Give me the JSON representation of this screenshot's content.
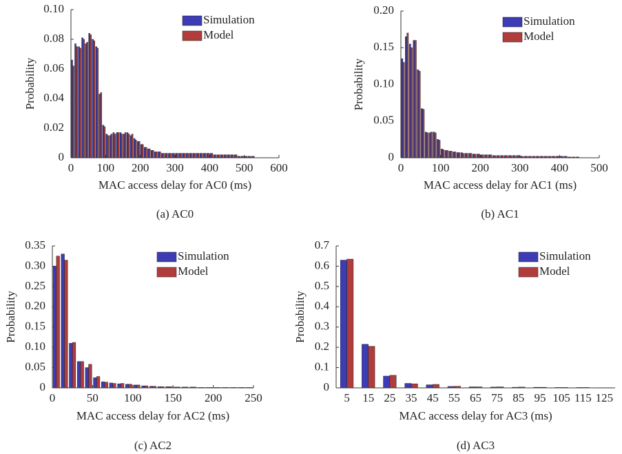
{
  "chart_data": [
    {
      "type": "bar",
      "caption": "(a) AC0",
      "xlabel": "MAC access delay for AC0 (ms)",
      "ylabel": "Probability",
      "legend": "upper right",
      "x": [
        5,
        15,
        25,
        35,
        45,
        55,
        65,
        75,
        85,
        95,
        105,
        115,
        125,
        135,
        145,
        155,
        165,
        175,
        185,
        195,
        205,
        215,
        225,
        235,
        245,
        255,
        265,
        275,
        285,
        295,
        305,
        315,
        325,
        335,
        345,
        355,
        365,
        375,
        385,
        395,
        405,
        415,
        425,
        435,
        445,
        455,
        465,
        475,
        485,
        495,
        505,
        515,
        525
      ],
      "series": [
        {
          "name": "Simulation",
          "color": "#3c3cb4",
          "values": [
            0.066,
            0.077,
            0.075,
            0.081,
            0.077,
            0.084,
            0.08,
            0.075,
            0.043,
            0.022,
            0.016,
            0.015,
            0.017,
            0.017,
            0.017,
            0.016,
            0.017,
            0.015,
            0.013,
            0.011,
            0.009,
            0.007,
            0.006,
            0.005,
            0.004,
            0.004,
            0.003,
            0.003,
            0.003,
            0.003,
            0.003,
            0.003,
            0.003,
            0.003,
            0.003,
            0.003,
            0.003,
            0.003,
            0.003,
            0.003,
            0.003,
            0.002,
            0.002,
            0.002,
            0.002,
            0.002,
            0.002,
            0.002,
            0.001,
            0.001,
            0.001,
            0.001,
            0.001
          ]
        },
        {
          "name": "Model",
          "color": "#b03c3c",
          "values": [
            0.062,
            0.075,
            0.074,
            0.08,
            0.078,
            0.083,
            0.079,
            0.074,
            0.044,
            0.021,
            0.015,
            0.016,
            0.016,
            0.017,
            0.016,
            0.017,
            0.016,
            0.016,
            0.012,
            0.011,
            0.009,
            0.007,
            0.006,
            0.005,
            0.004,
            0.004,
            0.003,
            0.003,
            0.003,
            0.003,
            0.003,
            0.003,
            0.003,
            0.003,
            0.003,
            0.003,
            0.003,
            0.003,
            0.003,
            0.003,
            0.003,
            0.002,
            0.002,
            0.002,
            0.002,
            0.002,
            0.002,
            0.002,
            0.001,
            0.001,
            0.001,
            0.001,
            0.001
          ]
        }
      ],
      "xlim": [
        0,
        600
      ],
      "xticks": [
        0,
        100,
        200,
        300,
        400,
        500,
        600
      ],
      "ylim": [
        0,
        0.1
      ],
      "yticks": [
        0,
        0.02,
        0.04,
        0.06,
        0.08,
        {
          "value": 0.1,
          "label": "0.10"
        }
      ]
    },
    {
      "type": "bar",
      "caption": "(b) AC1",
      "xlabel": "MAC access delay for AC1 (ms)",
      "ylabel": "Probability",
      "legend": "upper right",
      "x": [
        5,
        15,
        25,
        35,
        45,
        55,
        65,
        75,
        85,
        95,
        105,
        115,
        125,
        135,
        145,
        155,
        165,
        175,
        185,
        195,
        205,
        215,
        225,
        235,
        245,
        255,
        265,
        275,
        285,
        295,
        305,
        315,
        325,
        335,
        345,
        355,
        365,
        375,
        385,
        395,
        405,
        415,
        425,
        435,
        445
      ],
      "series": [
        {
          "name": "Simulation",
          "color": "#3c3cb4",
          "values": [
            0.135,
            0.165,
            0.155,
            0.16,
            0.12,
            0.067,
            0.035,
            0.034,
            0.035,
            0.025,
            0.012,
            0.01,
            0.009,
            0.008,
            0.007,
            0.007,
            0.006,
            0.006,
            0.005,
            0.005,
            0.004,
            0.004,
            0.004,
            0.003,
            0.003,
            0.003,
            0.003,
            0.003,
            0.003,
            0.003,
            0.002,
            0.002,
            0.002,
            0.002,
            0.002,
            0.002,
            0.002,
            0.002,
            0.002,
            0.002,
            0.002,
            0.002,
            0.001,
            0.001,
            0.001
          ]
        },
        {
          "name": "Model",
          "color": "#b03c3c",
          "values": [
            0.13,
            0.17,
            0.15,
            0.16,
            0.118,
            0.066,
            0.034,
            0.035,
            0.034,
            0.024,
            0.011,
            0.01,
            0.009,
            0.008,
            0.007,
            0.006,
            0.006,
            0.006,
            0.005,
            0.005,
            0.004,
            0.004,
            0.004,
            0.003,
            0.003,
            0.003,
            0.003,
            0.003,
            0.003,
            0.003,
            0.002,
            0.002,
            0.002,
            0.002,
            0.002,
            0.002,
            0.002,
            0.002,
            0.002,
            0.002,
            0.002,
            0.002,
            0.001,
            0.001,
            0.001
          ]
        }
      ],
      "xlim": [
        0,
        500
      ],
      "xticks": [
        0,
        100,
        200,
        300,
        400,
        500
      ],
      "ylim": [
        0,
        0.2
      ],
      "yticks": [
        0,
        0.05,
        {
          "value": 0.1,
          "label": "0.10"
        },
        0.15,
        {
          "value": 0.2,
          "label": "0.20"
        }
      ]
    },
    {
      "type": "bar",
      "caption": "(c) AC2",
      "xlabel": "MAC access delay for AC2 (ms)",
      "ylabel": "Probability",
      "legend": "upper right",
      "x": [
        5,
        15,
        25,
        35,
        45,
        55,
        65,
        75,
        85,
        95,
        105,
        115,
        125,
        135,
        145,
        155,
        165,
        175,
        185,
        195,
        205,
        215,
        225,
        235,
        245
      ],
      "series": [
        {
          "name": "Simulation",
          "color": "#3c3cb4",
          "values": [
            0.3,
            0.33,
            0.11,
            0.065,
            0.05,
            0.025,
            0.015,
            0.012,
            0.01,
            0.009,
            0.007,
            0.005,
            0.004,
            0.003,
            0.003,
            0.002,
            0.002,
            0.002,
            0.001,
            0.001,
            0.001,
            0.001,
            0.001,
            0.001,
            0.001
          ]
        },
        {
          "name": "Model",
          "color": "#b03c3c",
          "values": [
            0.325,
            0.315,
            0.112,
            0.065,
            0.058,
            0.028,
            0.014,
            0.011,
            0.011,
            0.009,
            0.007,
            0.005,
            0.004,
            0.003,
            0.003,
            0.002,
            0.002,
            0.002,
            0.001,
            0.001,
            0.001,
            0.001,
            0.001,
            0.001,
            0.001
          ]
        }
      ],
      "xlim": [
        0,
        250
      ],
      "xticks": [
        0,
        50,
        100,
        150,
        200,
        250
      ],
      "ylim": [
        0,
        0.35
      ],
      "yticks": [
        0,
        0.05,
        {
          "value": 0.1,
          "label": "0.10"
        },
        0.15,
        {
          "value": 0.2,
          "label": "0.20"
        },
        0.25,
        {
          "value": 0.3,
          "label": "0.30"
        },
        0.35
      ]
    },
    {
      "type": "bar",
      "caption": "(d) AC3",
      "xlabel": "MAC access delay for AC3 (ms)",
      "ylabel": "Probability",
      "legend": "upper right",
      "categories": [
        "5",
        "15",
        "25",
        "35",
        "45",
        "55",
        "65",
        "75",
        "85",
        "95",
        "105",
        "115",
        "125"
      ],
      "series": [
        {
          "name": "Simulation",
          "color": "#3c3cb4",
          "values": [
            0.63,
            0.215,
            0.058,
            0.022,
            0.015,
            0.007,
            0.005,
            0.004,
            0.003,
            0.003,
            0.002,
            0.002,
            0.001
          ]
        },
        {
          "name": "Model",
          "color": "#b03c3c",
          "values": [
            0.635,
            0.205,
            0.062,
            0.02,
            0.017,
            0.008,
            0.005,
            0.005,
            0.004,
            0.003,
            0.002,
            0.002,
            0.001
          ]
        }
      ],
      "ylim": [
        0,
        0.7
      ],
      "yticks": [
        0,
        0.1,
        0.2,
        0.3,
        0.4,
        0.5,
        0.6,
        0.7
      ]
    }
  ]
}
